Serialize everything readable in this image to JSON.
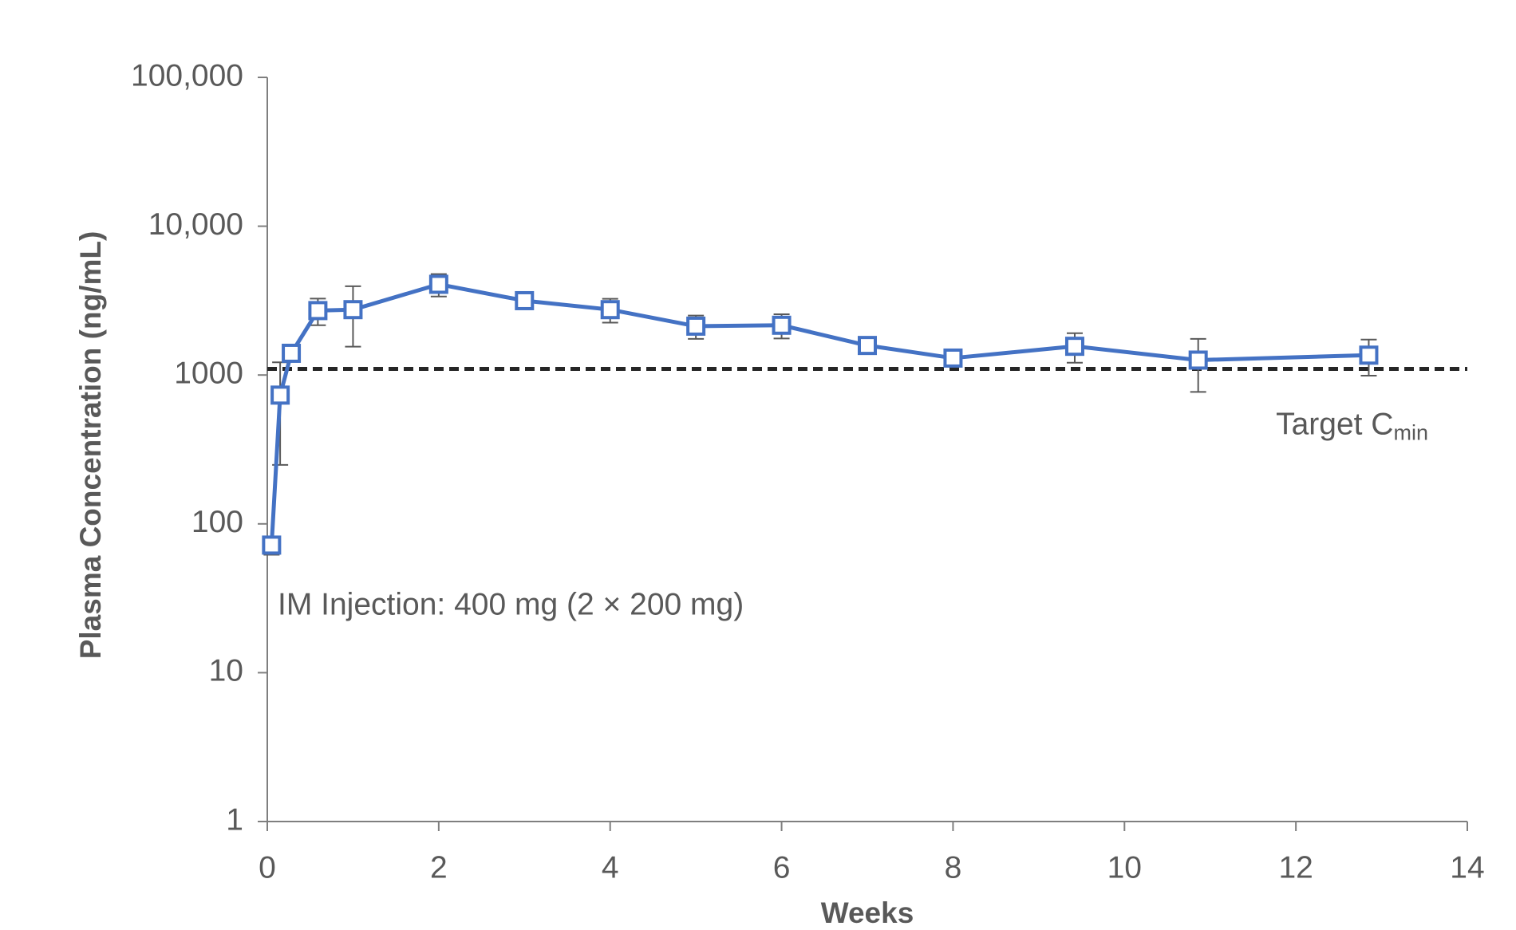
{
  "chart_data": {
    "type": "line",
    "x_label": "Weeks",
    "y_label": "Plasma Concentration (ng/mL)",
    "x": [
      0.05,
      0.15,
      0.28,
      0.59,
      1.0,
      2.0,
      3.0,
      4.0,
      5.0,
      6.0,
      7.0,
      8.0,
      9.42,
      10.86,
      12.85
    ],
    "series": [
      {
        "color": "#4472c4",
        "values": [
          72,
          733,
          1400,
          2710,
          2750,
          4070,
          3160,
          2750,
          2130,
          2160,
          1580,
          1300,
          1560,
          1260,
          1360
        ],
        "errors": [
          10,
          484,
          120,
          550,
          1200,
          700,
          200,
          500,
          380,
          400,
          100,
          100,
          350,
          490,
          370
        ]
      }
    ],
    "xlim": [
      0,
      14
    ],
    "xticks": [
      0,
      2,
      4,
      6,
      8,
      10,
      12,
      14
    ],
    "ylim": [
      1,
      100000
    ],
    "log_y": true,
    "yticks": [
      1,
      10,
      100,
      1000,
      {
        "value": 10000,
        "label": "10,000"
      },
      {
        "value": 100000,
        "label": "100,000"
      }
    ],
    "target_line": {
      "value": 1100,
      "color": "#262626",
      "text": "Target C",
      "subscript": "min"
    },
    "annotation": "IM Injection: 400 mg (2 × 200 mg)"
  }
}
